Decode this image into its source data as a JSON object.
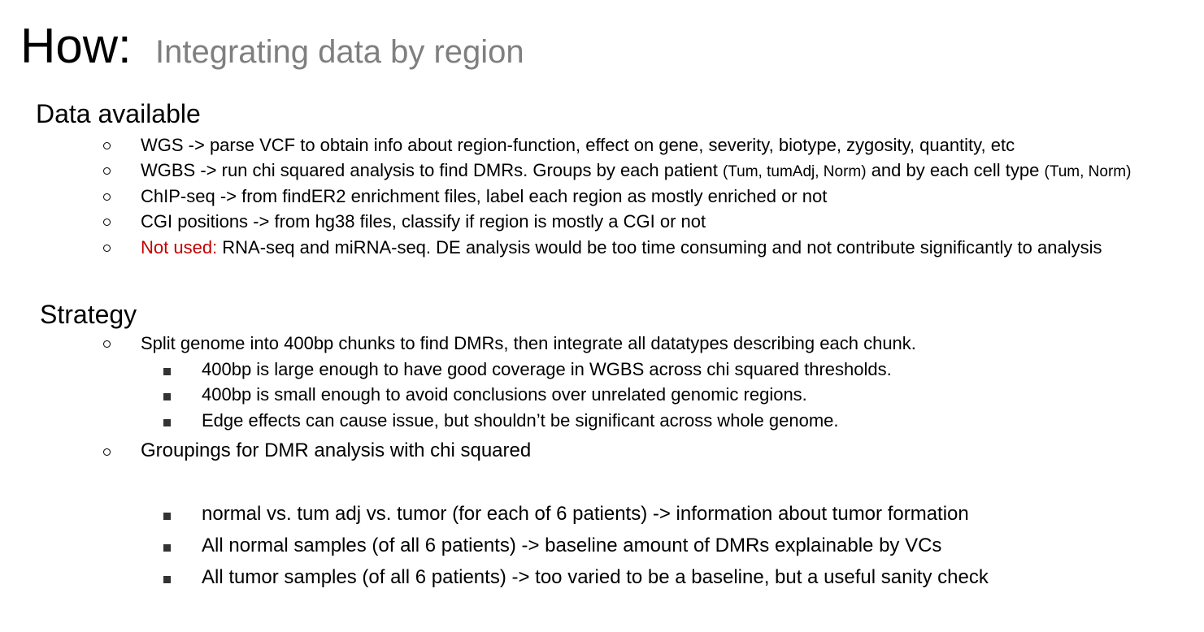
{
  "title": {
    "main": "How:",
    "sub": "Integrating data by region"
  },
  "data_available": {
    "heading": "Data available",
    "items": [
      {
        "text": "WGS -> parse VCF to obtain info about region-function, effect on gene, severity, biotype, zygosity, quantity, etc"
      },
      {
        "part1": "WGBS -> run chi squared analysis to find DMRs. Groups by each patient ",
        "part2": "(Tum, tumAdj, Norm)",
        "part3": " and by each cell type ",
        "part4": "(Tum, Norm)"
      },
      {
        "text": "ChIP-seq -> from findER2 enrichment files, label each region as mostly enriched or not"
      },
      {
        "text": "CGI positions -> from hg38 files, classify if region is mostly a CGI or not"
      },
      {
        "label": "Not used:",
        "text": " RNA-seq and miRNA-seq. DE analysis would be too time consuming and not contribute significantly to analysis",
        "label_color": "#c00000"
      }
    ]
  },
  "strategy": {
    "heading": "Strategy",
    "items": [
      {
        "text": "Split genome into 400bp chunks to find DMRs, then integrate all datatypes describing each chunk.",
        "subitems": [
          "400bp is large enough to have good coverage in WGBS across chi squared thresholds.",
          "400bp is small enough to avoid conclusions over unrelated genomic regions.",
          "Edge effects can cause issue, but shouldn’t be significant across whole genome."
        ]
      },
      {
        "text": "Groupings for DMR analysis with chi squared",
        "subitems": [
          "normal vs. tum adj vs. tumor (for each of 6 patients) -> information about tumor formation",
          "All normal samples (of all 6 patients) -> baseline amount of DMRs explainable by VCs",
          "All tumor samples (of all 6 patients) -> too varied to be a baseline, but a useful sanity check"
        ]
      }
    ]
  }
}
